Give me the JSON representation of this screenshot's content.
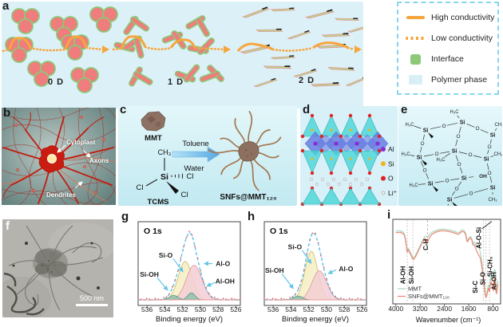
{
  "panels": {
    "a": "a",
    "b": "b",
    "c": "c",
    "d": "d",
    "e": "e",
    "f": "f",
    "g": "g",
    "h": "h",
    "i": "i"
  },
  "panel_a": {
    "labels": {
      "d0": "0 D",
      "d1": "1 D",
      "d2": "2 D"
    }
  },
  "legend": {
    "items": [
      {
        "name": "high-conductivity",
        "label": "High conductivity"
      },
      {
        "name": "low-conductivity",
        "label": "Low conductivity"
      },
      {
        "name": "interface",
        "label": "Interface"
      },
      {
        "name": "polymer-phase",
        "label": "Polymer phase"
      }
    ],
    "colors": {
      "orange": "#f5a53c",
      "green": "#8cc878",
      "polymer": "#d9eff8",
      "border": "#85d6e8"
    }
  },
  "panel_b": {
    "labels": {
      "cytoplast": "Cytoplast",
      "axons": "Axons",
      "dendrites": "Dendrites"
    }
  },
  "panel_c": {
    "mmt": "MMT",
    "tcms": "TCMS",
    "toluene": "Toluene",
    "water": "Water",
    "methyl": "CH₃",
    "si": "Si",
    "cl_left": "Cl",
    "cl_right": "Cl",
    "cl_bottom": "Cl",
    "product": "SNFs@MMT₁₂₀"
  },
  "panel_d": {
    "legend": [
      {
        "label": "Al",
        "color": "#8a2cd6"
      },
      {
        "label": "Si",
        "color": "#eeb41e"
      },
      {
        "label": "O",
        "color": "#e02424"
      },
      {
        "label": "Li⁺",
        "color": "#f2f2f2"
      }
    ]
  },
  "panel_e": {
    "labels": {
      "si": "Si",
      "o": "O",
      "me_left": "H₃C",
      "me_right": "CH₃",
      "oh": "OH"
    }
  },
  "panel_f": {
    "scale_bar": "500 nm"
  },
  "chart_data": [
    {
      "id": "xps-g",
      "type": "area",
      "title": "O 1s",
      "xlabel": "Binding energy (eV)",
      "x_ticks": [
        536,
        534,
        532,
        530,
        528,
        526
      ],
      "x_range": [
        537,
        525.5
      ],
      "envelope_color": "#5ec1e4",
      "data_dot_color": "#e06464",
      "baseline_color": "#e89898",
      "arrow_color": "#62c4e6",
      "components": [
        {
          "name": "Si-O",
          "center": 531.7,
          "sigma": 0.78,
          "amplitude": 0.6,
          "fill": "#f6efc2",
          "stroke": "#cdb965"
        },
        {
          "name": "Al-O",
          "center": 530.7,
          "sigma": 0.88,
          "amplitude": 0.54,
          "fill": "#f3ced5",
          "stroke": "#db96a3"
        },
        {
          "name": "Si-OH",
          "center": 533.0,
          "sigma": 0.5,
          "amplitude": 0.07,
          "fill": "#8fbfae",
          "stroke": "#5d9a86"
        },
        {
          "name": "Al-OH",
          "center": 531.0,
          "sigma": 0.42,
          "amplitude": 0.11,
          "fill": "#8fbfae",
          "stroke": "#5d9a86"
        }
      ],
      "annotations": [
        {
          "text": "Si-O",
          "tx": 0.27,
          "ty": 0.4,
          "ax": 0.44,
          "ay": 0.6
        },
        {
          "text": "Si-OH",
          "tx": 0.11,
          "ty": 0.63,
          "ax": 0.29,
          "ay": 0.82
        },
        {
          "text": "Al-O",
          "tx": 0.83,
          "ty": 0.5,
          "ax": 0.645,
          "ay": 0.5
        },
        {
          "text": "Al-OH",
          "tx": 0.85,
          "ty": 0.71,
          "ax": 0.67,
          "ay": 0.77
        }
      ]
    },
    {
      "id": "xps-h",
      "type": "area",
      "title": "O 1s",
      "xlabel": "Binding energy (eV)",
      "x_ticks": [
        536,
        534,
        532,
        530,
        528,
        526
      ],
      "x_range": [
        537,
        525.5
      ],
      "envelope_color": "#5ec1e4",
      "data_dot_color": "#e06464",
      "baseline_color": "#e89898",
      "arrow_color": "#62c4e6",
      "components": [
        {
          "name": "Si-O",
          "center": 531.7,
          "sigma": 0.72,
          "amplitude": 0.75,
          "fill": "#f6efc2",
          "stroke": "#cdb965"
        },
        {
          "name": "Al-O",
          "center": 530.8,
          "sigma": 0.82,
          "amplitude": 0.45,
          "fill": "#f3ced5",
          "stroke": "#db96a3"
        },
        {
          "name": "Si-OH",
          "center": 533.2,
          "sigma": 0.5,
          "amplitude": 0.06,
          "fill": "#8fbfae",
          "stroke": "#5d9a86"
        }
      ],
      "annotations": [
        {
          "text": "Si-O",
          "tx": 0.3,
          "ty": 0.3,
          "ax": 0.46,
          "ay": 0.5
        },
        {
          "text": "Si-OH",
          "tx": 0.1,
          "ty": 0.58,
          "ax": 0.285,
          "ay": 0.8
        },
        {
          "text": "Al-O",
          "tx": 0.8,
          "ty": 0.56,
          "ax": 0.625,
          "ay": 0.62
        }
      ]
    },
    {
      "id": "ftir-i",
      "type": "line",
      "xlabel": "Wavenumber (cm⁻¹)",
      "x_ticks": [
        4000,
        3200,
        2400,
        1600,
        800
      ],
      "x_range": [
        4100,
        550
      ],
      "legend_labels": [
        "MMT",
        "SNFs@MMT₁₂₀"
      ],
      "series": [
        {
          "name": "MMT",
          "color": "#aed6c0",
          "points": [
            [
              4000,
              0.88
            ],
            [
              3900,
              0.89
            ],
            [
              3800,
              0.88
            ],
            [
              3720,
              0.86
            ],
            [
              3660,
              0.74
            ],
            [
              3625,
              0.62
            ],
            [
              3600,
              0.68
            ],
            [
              3560,
              0.64
            ],
            [
              3500,
              0.6
            ],
            [
              3440,
              0.54
            ],
            [
              3380,
              0.56
            ],
            [
              3300,
              0.62
            ],
            [
              3200,
              0.7
            ],
            [
              3100,
              0.78
            ],
            [
              3020,
              0.83
            ],
            [
              2960,
              0.8
            ],
            [
              2920,
              0.83
            ],
            [
              2850,
              0.86
            ],
            [
              2750,
              0.88
            ],
            [
              2600,
              0.9
            ],
            [
              2450,
              0.91
            ],
            [
              2300,
              0.9
            ],
            [
              2150,
              0.89
            ],
            [
              2000,
              0.87
            ],
            [
              1950,
              0.86
            ],
            [
              1900,
              0.87
            ],
            [
              1850,
              0.89
            ],
            [
              1800,
              0.9
            ],
            [
              1750,
              0.89
            ],
            [
              1700,
              0.86
            ],
            [
              1655,
              0.76
            ],
            [
              1620,
              0.78
            ],
            [
              1560,
              0.82
            ],
            [
              1500,
              0.8
            ],
            [
              1460,
              0.72
            ],
            [
              1430,
              0.75
            ],
            [
              1380,
              0.72
            ],
            [
              1330,
              0.68
            ],
            [
              1270,
              0.7
            ],
            [
              1220,
              0.62
            ],
            [
              1160,
              0.48
            ],
            [
              1100,
              0.28
            ],
            [
              1060,
              0.12
            ],
            [
              1030,
              0.06
            ],
            [
              1000,
              0.1
            ],
            [
              970,
              0.18
            ],
            [
              940,
              0.22
            ],
            [
              915,
              0.16
            ],
            [
              890,
              0.26
            ],
            [
              860,
              0.32
            ],
            [
              835,
              0.26
            ],
            [
              810,
              0.32
            ],
            [
              790,
              0.28
            ],
            [
              770,
              0.36
            ],
            [
              740,
              0.42
            ],
            [
              715,
              0.28
            ],
            [
              690,
              0.14
            ],
            [
              665,
              0.18
            ],
            [
              640,
              0.26
            ]
          ]
        },
        {
          "name": "SNFs@MMT₁₂₀",
          "color": "#ea8a74",
          "points": [
            [
              4000,
              0.86
            ],
            [
              3900,
              0.87
            ],
            [
              3800,
              0.86
            ],
            [
              3720,
              0.84
            ],
            [
              3660,
              0.72
            ],
            [
              3625,
              0.6
            ],
            [
              3600,
              0.66
            ],
            [
              3560,
              0.62
            ],
            [
              3500,
              0.58
            ],
            [
              3440,
              0.52
            ],
            [
              3380,
              0.54
            ],
            [
              3300,
              0.6
            ],
            [
              3200,
              0.68
            ],
            [
              3100,
              0.76
            ],
            [
              3020,
              0.8
            ],
            [
              2960,
              0.72
            ],
            [
              2920,
              0.78
            ],
            [
              2850,
              0.83
            ],
            [
              2750,
              0.86
            ],
            [
              2600,
              0.88
            ],
            [
              2450,
              0.89
            ],
            [
              2300,
              0.88
            ],
            [
              2150,
              0.87
            ],
            [
              2000,
              0.85
            ],
            [
              1950,
              0.84
            ],
            [
              1900,
              0.85
            ],
            [
              1850,
              0.87
            ],
            [
              1800,
              0.88
            ],
            [
              1750,
              0.87
            ],
            [
              1700,
              0.84
            ],
            [
              1655,
              0.74
            ],
            [
              1620,
              0.76
            ],
            [
              1560,
              0.8
            ],
            [
              1500,
              0.78
            ],
            [
              1460,
              0.7
            ],
            [
              1430,
              0.72
            ],
            [
              1380,
              0.68
            ],
            [
              1330,
              0.62
            ],
            [
              1270,
              0.58
            ],
            [
              1220,
              0.55
            ],
            [
              1160,
              0.42
            ],
            [
              1100,
              0.22
            ],
            [
              1060,
              0.08
            ],
            [
              1030,
              0.04
            ],
            [
              1000,
              0.08
            ],
            [
              970,
              0.14
            ],
            [
              940,
              0.18
            ],
            [
              915,
              0.1
            ],
            [
              890,
              0.2
            ],
            [
              860,
              0.26
            ],
            [
              835,
              0.2
            ],
            [
              810,
              0.24
            ],
            [
              790,
              0.1
            ],
            [
              770,
              0.26
            ],
            [
              740,
              0.32
            ],
            [
              715,
              0.18
            ],
            [
              690,
              0.08
            ],
            [
              665,
              0.14
            ],
            [
              640,
              0.22
            ]
          ]
        }
      ],
      "ref_lines": [
        {
          "x": 3625,
          "style": "dotted"
        },
        {
          "x": 3440,
          "style": "dotted"
        },
        {
          "x": 2960,
          "style": "dashed"
        },
        {
          "x": 1120,
          "style": "dotted"
        },
        {
          "x": 1030,
          "style": "dotted"
        },
        {
          "x": 915,
          "style": "dotted"
        }
      ],
      "band_labels": [
        {
          "text": "Al-OH",
          "x": 3690,
          "y": 0.66
        },
        {
          "text": "Si-OH",
          "x": 3420,
          "y": 0.66
        },
        {
          "text": "C-H",
          "x": 2945,
          "y": 0.3
        },
        {
          "text": "Al-O-Si",
          "x": 1190,
          "y": 0.22
        },
        {
          "text": "Si-C",
          "x": 1310,
          "y": 0.8
        },
        {
          "text": "Si-O",
          "x": 1060,
          "y": 0.7
        },
        {
          "text": "Si-CH₃",
          "x": 820,
          "y": 0.56
        },
        {
          "text": "Al-OH",
          "x": 695,
          "y": 0.73
        }
      ]
    }
  ]
}
